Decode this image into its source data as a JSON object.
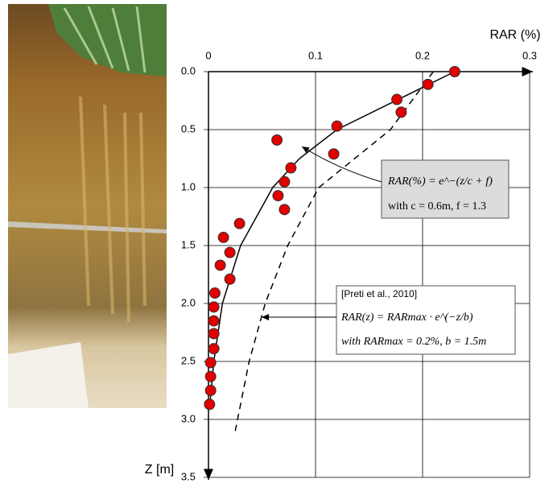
{
  "chart_data": {
    "type": "scatter-line",
    "x_label": "RAR (%)",
    "y_label": "Z [m]",
    "xlim": [
      0,
      0.3
    ],
    "xticks": [
      0,
      0.1,
      0.2,
      0.3
    ],
    "ylim": [
      0,
      3.5
    ],
    "yticks": [
      {
        "value": 0,
        "label": "0.0"
      },
      0.5,
      {
        "value": 1,
        "label": "1.0"
      },
      1.5,
      {
        "value": 2,
        "label": "2.0"
      },
      2.5,
      {
        "value": 3,
        "label": "3.0"
      },
      3.5
    ],
    "y_inverted": true,
    "grid": true,
    "series": [
      {
        "style": "markers",
        "color": "#e00000",
        "x": [
          0.23,
          0.205,
          0.176,
          0.18,
          0.12,
          0.064,
          0.117,
          0.077,
          0.071,
          0.065,
          0.071,
          0.029,
          0.014,
          0.02,
          0.011,
          0.02,
          0.006,
          0.005,
          0.005,
          0.005,
          0.005,
          0.002,
          0.002,
          0.002,
          0.001
        ],
        "values": [
          0,
          0.11,
          0.24,
          0.35,
          0.47,
          0.59,
          0.71,
          0.83,
          0.95,
          1.07,
          1.19,
          1.31,
          1.43,
          1.56,
          1.67,
          1.79,
          1.91,
          2.03,
          2.15,
          2.26,
          2.39,
          2.51,
          2.63,
          2.75,
          2.87
        ]
      },
      {
        "style": "solid",
        "color": "#000000",
        "x": [
          0.23,
          0.175,
          0.12,
          0.085,
          0.06,
          0.03,
          0.013,
          0.005,
          0.001
        ],
        "values": [
          0,
          0.25,
          0.5,
          0.75,
          1,
          1.5,
          2,
          2.5,
          2.9
        ]
      },
      {
        "style": "dashed",
        "color": "#000000",
        "x": [
          0.21,
          0.17,
          0.103,
          0.074,
          0.053,
          0.038,
          0.025
        ],
        "values": [
          0,
          0.5,
          1,
          1.5,
          2,
          2.5,
          3.1
        ]
      }
    ],
    "annotations": [
      {
        "lines": [
          "RAR(%) = e^−(z/c + f)",
          "with c = 0.6m, f = 1.3"
        ]
      },
      {
        "lines": [
          "[Preti et al., 2010]",
          "RAR(z) = RARmax · e^(−z/b)",
          "with RARmax = 0.2%, b = 1.5m"
        ]
      }
    ]
  }
}
